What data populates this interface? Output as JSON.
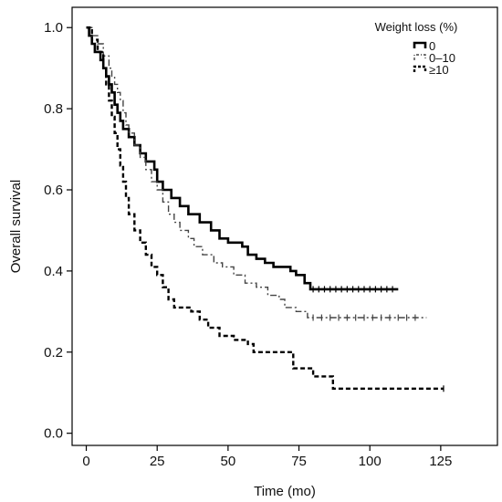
{
  "chart_data": {
    "type": "line",
    "title": "",
    "xlabel": "Time (mo)",
    "ylabel": "Overall survival",
    "xlim": [
      -5,
      145
    ],
    "ylim": [
      -0.03,
      1.05
    ],
    "x_ticks": [
      0,
      25,
      50,
      75,
      100,
      125
    ],
    "y_ticks": [
      0.0,
      0.2,
      0.4,
      0.6,
      0.8,
      1.0
    ],
    "y_tick_labels": [
      "0.0",
      "0.2",
      "0.4",
      "0.6",
      "0.8",
      "1.0"
    ],
    "grid": false,
    "legend": {
      "title": "Weight loss (%)",
      "placement": "top-right"
    },
    "series": [
      {
        "name": "0",
        "style": "solid",
        "color": "#000000",
        "points": [
          [
            0,
            1.0
          ],
          [
            1,
            0.98
          ],
          [
            2,
            0.96
          ],
          [
            3,
            0.94
          ],
          [
            5,
            0.92
          ],
          [
            6,
            0.9
          ],
          [
            7,
            0.88
          ],
          [
            8,
            0.86
          ],
          [
            9,
            0.84
          ],
          [
            10,
            0.81
          ],
          [
            11,
            0.79
          ],
          [
            12,
            0.77
          ],
          [
            13,
            0.75
          ],
          [
            15,
            0.73
          ],
          [
            17,
            0.71
          ],
          [
            19,
            0.69
          ],
          [
            21,
            0.67
          ],
          [
            24,
            0.65
          ],
          [
            25,
            0.62
          ],
          [
            27,
            0.6
          ],
          [
            30,
            0.58
          ],
          [
            33,
            0.56
          ],
          [
            36,
            0.54
          ],
          [
            40,
            0.52
          ],
          [
            44,
            0.5
          ],
          [
            47,
            0.48
          ],
          [
            50,
            0.47
          ],
          [
            55,
            0.46
          ],
          [
            57,
            0.44
          ],
          [
            60,
            0.43
          ],
          [
            63,
            0.42
          ],
          [
            66,
            0.41
          ],
          [
            70,
            0.41
          ],
          [
            72,
            0.4
          ],
          [
            74,
            0.39
          ],
          [
            77,
            0.37
          ],
          [
            79,
            0.355
          ],
          [
            110,
            0.355
          ]
        ],
        "censor_x": [
          80,
          82,
          84,
          86,
          88,
          90,
          92,
          94,
          96,
          98,
          100,
          102,
          104,
          106,
          108
        ]
      },
      {
        "name": "0–10",
        "style": "dashdot",
        "color": "#444444",
        "points": [
          [
            0,
            1.0
          ],
          [
            2,
            0.98
          ],
          [
            4,
            0.96
          ],
          [
            6,
            0.93
          ],
          [
            8,
            0.9
          ],
          [
            9,
            0.88
          ],
          [
            10,
            0.86
          ],
          [
            11,
            0.84
          ],
          [
            12,
            0.82
          ],
          [
            13,
            0.79
          ],
          [
            14,
            0.76
          ],
          [
            15,
            0.74
          ],
          [
            17,
            0.71
          ],
          [
            19,
            0.68
          ],
          [
            21,
            0.65
          ],
          [
            23,
            0.62
          ],
          [
            25,
            0.6
          ],
          [
            27,
            0.57
          ],
          [
            29,
            0.54
          ],
          [
            31,
            0.52
          ],
          [
            33,
            0.5
          ],
          [
            36,
            0.48
          ],
          [
            38,
            0.46
          ],
          [
            41,
            0.44
          ],
          [
            45,
            0.42
          ],
          [
            48,
            0.41
          ],
          [
            52,
            0.39
          ],
          [
            56,
            0.37
          ],
          [
            60,
            0.36
          ],
          [
            64,
            0.34
          ],
          [
            68,
            0.33
          ],
          [
            70,
            0.31
          ],
          [
            74,
            0.3
          ],
          [
            78,
            0.285
          ],
          [
            120,
            0.285
          ]
        ],
        "censor_x": [
          80,
          83,
          86,
          89,
          92,
          95,
          98,
          101,
          104,
          107,
          110,
          113,
          116
        ]
      },
      {
        "name": "≥10",
        "style": "dashed",
        "color": "#000000",
        "points": [
          [
            0,
            1.0
          ],
          [
            2,
            0.97
          ],
          [
            4,
            0.94
          ],
          [
            6,
            0.9
          ],
          [
            7,
            0.86
          ],
          [
            8,
            0.82
          ],
          [
            9,
            0.78
          ],
          [
            10,
            0.74
          ],
          [
            11,
            0.7
          ],
          [
            12,
            0.66
          ],
          [
            13,
            0.62
          ],
          [
            14,
            0.58
          ],
          [
            15,
            0.54
          ],
          [
            17,
            0.5
          ],
          [
            19,
            0.47
          ],
          [
            21,
            0.44
          ],
          [
            23,
            0.41
          ],
          [
            25,
            0.39
          ],
          [
            27,
            0.36
          ],
          [
            29,
            0.33
          ],
          [
            31,
            0.31
          ],
          [
            37,
            0.3
          ],
          [
            40,
            0.28
          ],
          [
            43,
            0.26
          ],
          [
            47,
            0.24
          ],
          [
            52,
            0.23
          ],
          [
            57,
            0.22
          ],
          [
            59,
            0.2
          ],
          [
            72,
            0.2
          ],
          [
            73,
            0.16
          ],
          [
            79,
            0.16
          ],
          [
            80,
            0.14
          ],
          [
            86,
            0.14
          ],
          [
            87,
            0.11
          ],
          [
            126,
            0.11
          ]
        ],
        "censor_x": [
          126
        ]
      }
    ]
  }
}
